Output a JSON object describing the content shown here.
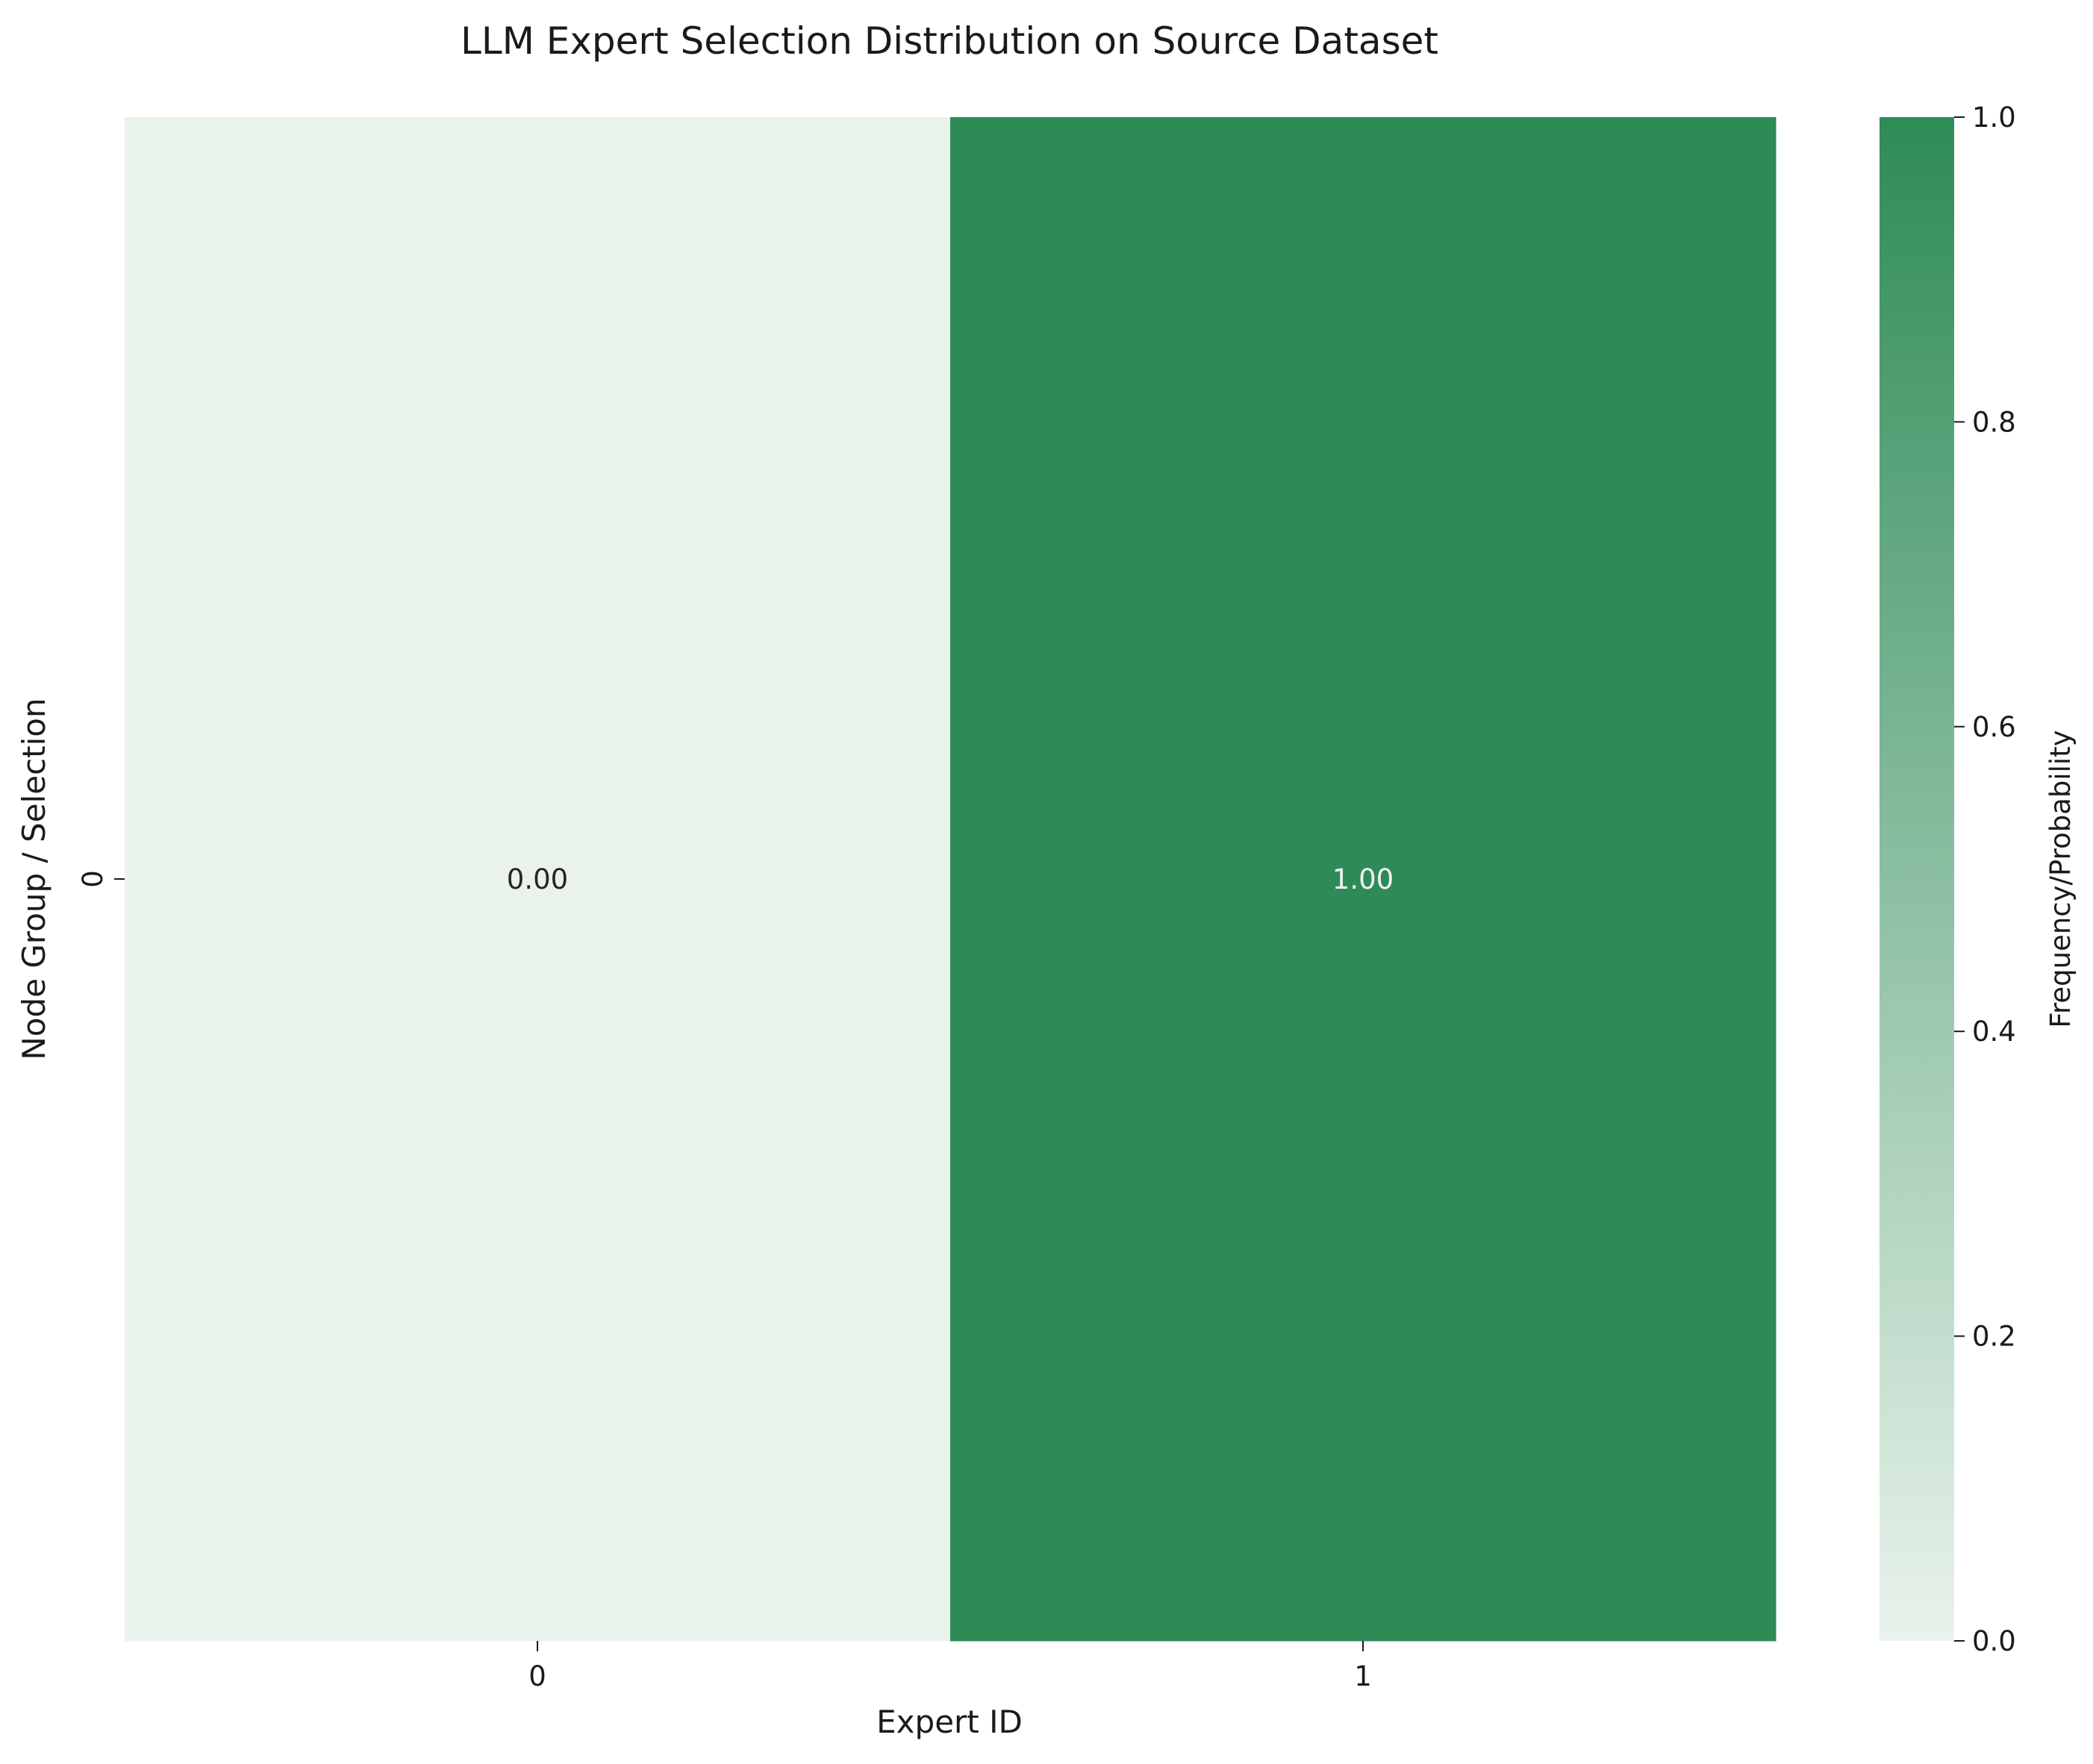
{
  "chart_data": {
    "type": "heatmap",
    "title": "LLM Expert Selection Distribution on Source Dataset",
    "xlabel": "Expert ID",
    "ylabel": "Node Group / Selection",
    "x_categories": [
      "0",
      "1"
    ],
    "y_categories": [
      "0"
    ],
    "values": [
      [
        0.0,
        1.0
      ]
    ],
    "cell_labels": [
      [
        "0.00",
        "1.00"
      ]
    ],
    "colorbar": {
      "label": "Frequency/Probability",
      "range": [
        0,
        1
      ],
      "ticks": [
        "0.0",
        "0.2",
        "0.4",
        "0.6",
        "0.8",
        "1.0"
      ],
      "colormap": [
        "#e9f3ec",
        "#2e8b57"
      ]
    },
    "annotation_colors": {
      "light_cell": "#262626",
      "dark_cell": "#f2f2f2"
    },
    "grid": false
  }
}
